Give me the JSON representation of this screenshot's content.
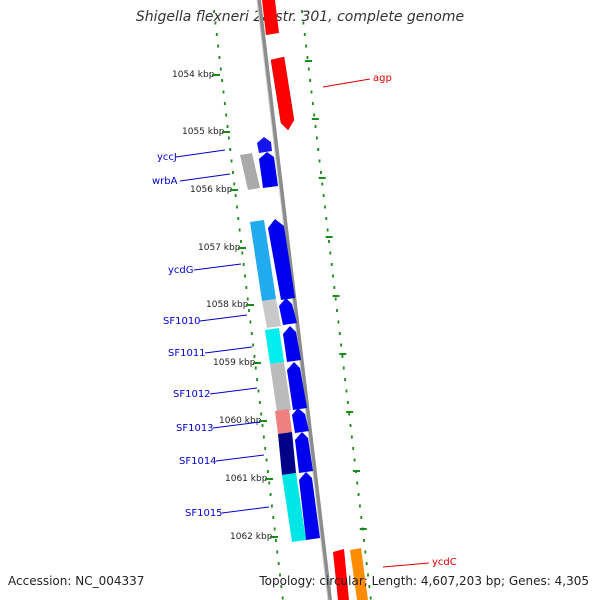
{
  "title": "Shigella flexneri 2a str. 301, complete genome",
  "footer": {
    "accession": "Accession: NC_004337",
    "summary": "Topology: circular; Length: 4,607,203 bp; Genes: 4,305"
  },
  "colors": {
    "backbone": "#8c8c8c",
    "ticks": "#1a8a1a",
    "label_blue": "#0000cc",
    "label_red": "#dd0000"
  },
  "scale_labels": [
    {
      "text": "1054 kbp",
      "kbp": 1054.0
    },
    {
      "text": "1055 kbp",
      "kbp": 1055.0
    },
    {
      "text": "1056 kbp",
      "kbp": 1056.0
    },
    {
      "text": "1057 kbp",
      "kbp": 1057.0
    },
    {
      "text": "1058 kbp",
      "kbp": 1058.0
    },
    {
      "text": "1059 kbp",
      "kbp": 1059.0
    },
    {
      "text": "1060 kbp",
      "kbp": 1060.0
    },
    {
      "text": "1061 kbp",
      "kbp": 1061.0
    },
    {
      "text": "1062 kbp",
      "kbp": 1062.0
    }
  ],
  "features": [
    {
      "name": "agp",
      "start": 1053.1,
      "end": 1054.4,
      "color": "#ff0000",
      "strand": "forward"
    },
    {
      "name": "yccJ",
      "start": 1055.0,
      "end": 1055.4,
      "color": "#1515ee",
      "strand": "forward"
    },
    {
      "name": "wrbA",
      "start": 1055.4,
      "end": 1056.0,
      "color": "#0000ee",
      "strand": "forward"
    },
    {
      "name": "ycdG",
      "start": 1056.5,
      "end": 1057.9,
      "color": "#0000ee",
      "strand": "forward"
    },
    {
      "name": "SF1010",
      "start": 1057.9,
      "end": 1058.4,
      "color": "#0000ff",
      "strand": "forward"
    },
    {
      "name": "SF1011",
      "start": 1058.45,
      "end": 1059.0,
      "color": "#0000ee",
      "strand": "forward"
    },
    {
      "name": "SF1012",
      "start": 1059.0,
      "end": 1059.8,
      "color": "#0000ee",
      "strand": "forward"
    },
    {
      "name": "SF1013",
      "start": 1059.8,
      "end": 1060.2,
      "color": "#0000ff",
      "strand": "forward"
    },
    {
      "name": "SF1014",
      "start": 1060.2,
      "end": 1060.9,
      "color": "#0000ee",
      "strand": "forward"
    },
    {
      "name": "SF1015",
      "start": 1060.9,
      "end": 1062.0,
      "color": "#0000ee",
      "strand": "forward"
    },
    {
      "name": "ycdC",
      "start": 1062.25,
      "end": 1062.6,
      "color": "#ff0000",
      "strand": "forward"
    }
  ],
  "feature_labels": [
    {
      "text": "agp",
      "color": "#dd0000"
    },
    {
      "text": "yccJ",
      "color": "#0000cc"
    },
    {
      "text": "wrbA",
      "color": "#0000cc"
    },
    {
      "text": "ycdG",
      "color": "#0000cc"
    },
    {
      "text": "SF1010",
      "color": "#0000cc"
    },
    {
      "text": "SF1011",
      "color": "#0000cc"
    },
    {
      "text": "SF1012",
      "color": "#0000cc"
    },
    {
      "text": "SF1013",
      "color": "#0000cc"
    },
    {
      "text": "SF1014",
      "color": "#0000cc"
    },
    {
      "text": "SF1015",
      "color": "#0000cc"
    },
    {
      "text": "ycdC",
      "color": "#dd0000"
    }
  ]
}
